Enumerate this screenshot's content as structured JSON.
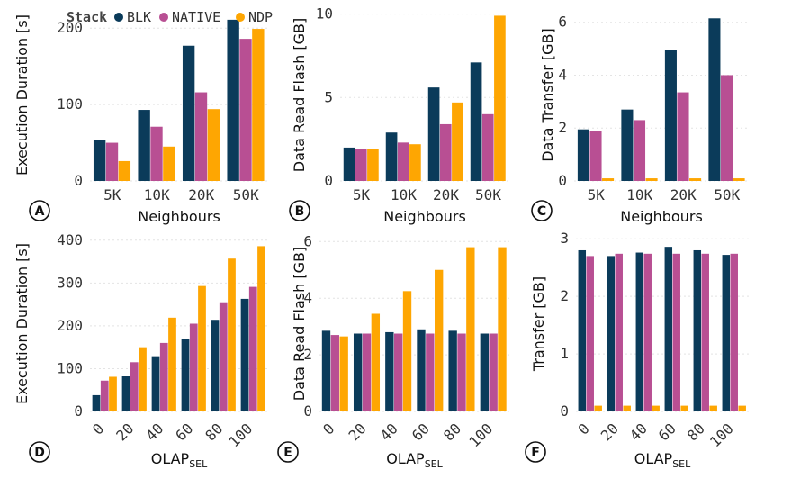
{
  "legend": {
    "title": "Stack",
    "items": [
      {
        "label": "BLK",
        "color": "#0b3b5a"
      },
      {
        "label": "NATIVE",
        "color": "#b84f93"
      },
      {
        "label": "NDP",
        "color": "#fea602"
      }
    ]
  },
  "chart_data": [
    {
      "panel": "A",
      "type": "bar",
      "xlabel": "Neighbours",
      "ylabel": "Execution Duration [s]",
      "categories": [
        "5K",
        "10K",
        "20K",
        "50K"
      ],
      "ylim": [
        0,
        225
      ],
      "yticks": [
        0,
        100,
        200
      ],
      "grid": true,
      "series": [
        {
          "name": "BLK",
          "values": [
            54,
            93,
            177,
            211
          ]
        },
        {
          "name": "NATIVE",
          "values": [
            50,
            71,
            116,
            186
          ]
        },
        {
          "name": "NDP",
          "values": [
            26,
            45,
            94,
            199
          ]
        }
      ]
    },
    {
      "panel": "B",
      "type": "bar",
      "xlabel": "Neighbours",
      "ylabel": "Data Read Flash [GB]",
      "categories": [
        "5K",
        "10K",
        "20K",
        "50K"
      ],
      "ylim": [
        0,
        10.3
      ],
      "yticks": [
        0,
        5,
        10
      ],
      "grid": true,
      "series": [
        {
          "name": "BLK",
          "values": [
            2.0,
            2.9,
            5.6,
            7.1
          ]
        },
        {
          "name": "NATIVE",
          "values": [
            1.9,
            2.3,
            3.4,
            4.0
          ]
        },
        {
          "name": "NDP",
          "values": [
            1.9,
            2.2,
            4.7,
            9.9
          ]
        }
      ]
    },
    {
      "panel": "C",
      "type": "bar",
      "xlabel": "Neighbours",
      "ylabel": "Data Transfer [GB]",
      "categories": [
        "5K",
        "10K",
        "20K",
        "50K"
      ],
      "ylim": [
        0,
        6.5
      ],
      "yticks": [
        0,
        2,
        4,
        6
      ],
      "grid": true,
      "series": [
        {
          "name": "BLK",
          "values": [
            1.95,
            2.7,
            4.95,
            6.15
          ]
        },
        {
          "name": "NATIVE",
          "values": [
            1.9,
            2.3,
            3.35,
            4.0
          ]
        },
        {
          "name": "NDP",
          "values": [
            0.1,
            0.1,
            0.1,
            0.1
          ]
        }
      ]
    },
    {
      "panel": "D",
      "type": "bar",
      "xlabel": "OLAP",
      "xlabel_sub": "SEL",
      "ylabel": "Execution Duration [s]",
      "categories": [
        "0",
        "20",
        "40",
        "60",
        "80",
        "100"
      ],
      "ylim": [
        0,
        410
      ],
      "yticks": [
        0,
        100,
        200,
        300,
        400
      ],
      "grid": true,
      "series": [
        {
          "name": "BLK",
          "values": [
            38,
            82,
            129,
            170,
            214,
            263
          ]
        },
        {
          "name": "NATIVE",
          "values": [
            72,
            115,
            160,
            205,
            255,
            291
          ]
        },
        {
          "name": "NDP",
          "values": [
            81,
            150,
            219,
            293,
            357,
            386
          ]
        }
      ]
    },
    {
      "panel": "E",
      "type": "bar",
      "xlabel": "OLAP",
      "xlabel_sub": "SEL",
      "ylabel": "Data Read Flash [GB]",
      "categories": [
        "0",
        "20",
        "40",
        "60",
        "80",
        "100"
      ],
      "ylim": [
        0,
        6.2
      ],
      "yticks": [
        0,
        2,
        4,
        6
      ],
      "grid": true,
      "series": [
        {
          "name": "BLK",
          "values": [
            2.85,
            2.75,
            2.8,
            2.9,
            2.85,
            2.75
          ]
        },
        {
          "name": "NATIVE",
          "values": [
            2.7,
            2.75,
            2.75,
            2.75,
            2.75,
            2.75
          ]
        },
        {
          "name": "NDP",
          "values": [
            2.65,
            3.45,
            4.25,
            5.0,
            5.8,
            5.8
          ]
        }
      ]
    },
    {
      "panel": "F",
      "type": "bar",
      "xlabel": "OLAP",
      "xlabel_sub": "SEL",
      "ylabel": "Transfer [GB]",
      "categories": [
        "0",
        "20",
        "40",
        "60",
        "80",
        "100"
      ],
      "ylim": [
        0,
        3.05
      ],
      "yticks": [
        0,
        1,
        2,
        3
      ],
      "grid": true,
      "series": [
        {
          "name": "BLK",
          "values": [
            2.8,
            2.7,
            2.76,
            2.86,
            2.8,
            2.72
          ]
        },
        {
          "name": "NATIVE",
          "values": [
            2.7,
            2.74,
            2.74,
            2.74,
            2.74,
            2.74
          ]
        },
        {
          "name": "NDP",
          "values": [
            0.1,
            0.1,
            0.1,
            0.1,
            0.1,
            0.1
          ]
        }
      ]
    }
  ]
}
